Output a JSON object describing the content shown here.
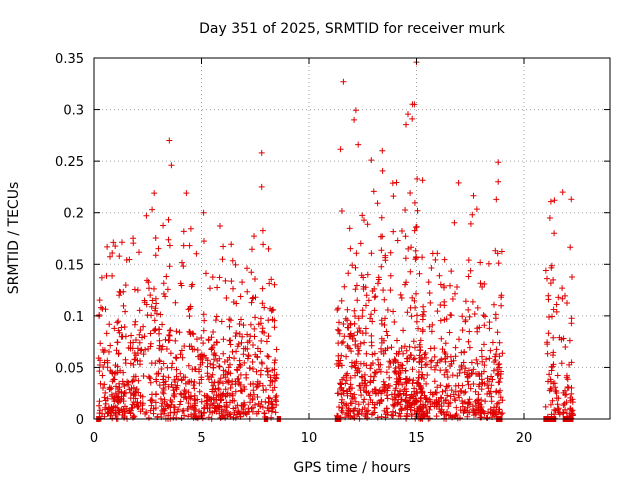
{
  "chart_data": {
    "type": "scatter",
    "title": "Day 351 of 2025, SRMTID for receiver murk",
    "xlabel": "GPS time / hours",
    "ylabel": "SRMTID / TECUs",
    "xlim": [
      0,
      24
    ],
    "ylim": [
      0,
      0.35
    ],
    "xticks": [
      0,
      5,
      10,
      15,
      20
    ],
    "xtick_labels": [
      "0",
      "5",
      "10",
      "15",
      "20"
    ],
    "yticks": [
      0,
      0.05,
      0.1,
      0.15,
      0.2,
      0.25,
      0.3,
      0.35
    ],
    "ytick_labels": [
      "0",
      "0.05",
      "0.1",
      "0.15",
      "0.2",
      "0.25",
      "0.3",
      "0.35"
    ],
    "grid": true,
    "marker": "plus",
    "color": "#e00000",
    "clusters": [
      {
        "x_range": [
          0.2,
          8.5
        ],
        "y_scale": 0.055,
        "y_max": 0.2,
        "count": 900
      },
      {
        "x_range": [
          11.3,
          15.3
        ],
        "y_scale": 0.065,
        "y_max": 0.33,
        "count": 520
      },
      {
        "x_range": [
          15.0,
          19.0
        ],
        "y_scale": 0.045,
        "y_max": 0.25,
        "count": 420
      },
      {
        "x_range": [
          21.0,
          22.3
        ],
        "y_scale": 0.05,
        "y_max": 0.22,
        "count": 110
      }
    ],
    "notable_points": [
      {
        "x": 15.0,
        "y": 0.346
      },
      {
        "x": 11.6,
        "y": 0.327
      },
      {
        "x": 14.9,
        "y": 0.305
      },
      {
        "x": 14.8,
        "y": 0.291
      },
      {
        "x": 12.1,
        "y": 0.29
      },
      {
        "x": 3.5,
        "y": 0.27
      },
      {
        "x": 7.8,
        "y": 0.258
      },
      {
        "x": 18.8,
        "y": 0.249
      },
      {
        "x": 12.9,
        "y": 0.251
      },
      {
        "x": 3.6,
        "y": 0.246
      },
      {
        "x": 7.8,
        "y": 0.225
      },
      {
        "x": 21.8,
        "y": 0.22
      },
      {
        "x": 22.2,
        "y": 0.213
      },
      {
        "x": 2.8,
        "y": 0.219
      },
      {
        "x": 4.3,
        "y": 0.219
      },
      {
        "x": 2.7,
        "y": 0.203
      },
      {
        "x": 5.1,
        "y": 0.2
      },
      {
        "x": 18.8,
        "y": 0.23
      }
    ],
    "zero_segments": [
      [
        0.1,
        0.3
      ],
      [
        7.9,
        8.1
      ],
      [
        8.5,
        8.7
      ],
      [
        11.2,
        11.5
      ],
      [
        18.7,
        19.0
      ],
      [
        20.9,
        21.5
      ],
      [
        21.8,
        22.3
      ]
    ]
  }
}
